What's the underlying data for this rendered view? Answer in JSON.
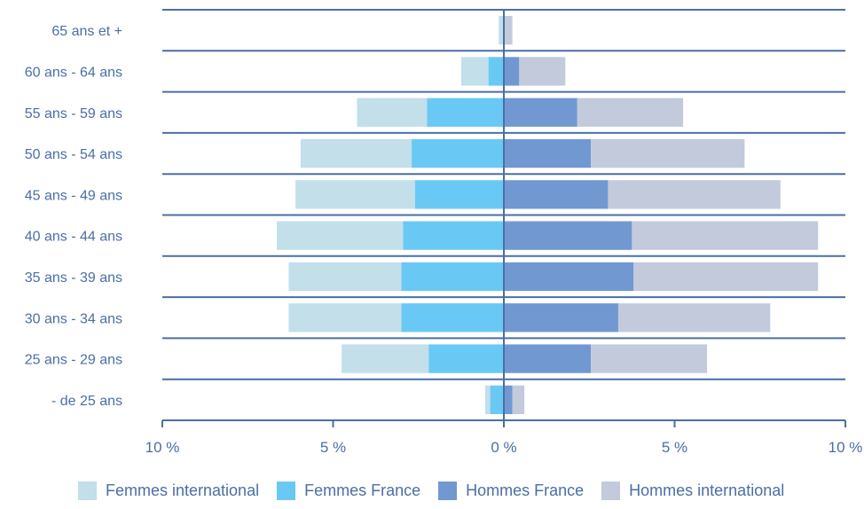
{
  "chart_data": {
    "type": "bar",
    "orientation": "horizontal",
    "layout": "population-pyramid",
    "categories": [
      "65 ans et +",
      "60 ans - 64 ans",
      "55 ans - 59 ans",
      "50 ans - 54 ans",
      "45 ans - 49 ans",
      "40 ans - 44 ans",
      "35 ans - 39 ans",
      "30 ans - 34 ans",
      "25 ans - 29 ans",
      "- de 25 ans"
    ],
    "series": [
      {
        "name": "Femmes international",
        "side": "left",
        "color": "#c2dfea",
        "values": [
          0.15,
          0.8,
          2.05,
          3.25,
          3.5,
          3.7,
          3.3,
          3.3,
          2.55,
          0.15
        ]
      },
      {
        "name": "Femmes France",
        "side": "left",
        "color": "#6ac9f4",
        "values": [
          0.0,
          0.45,
          2.25,
          2.7,
          2.6,
          2.95,
          3.0,
          3.0,
          2.2,
          0.4
        ]
      },
      {
        "name": "Hommes France",
        "side": "right",
        "color": "#7198d1",
        "values": [
          0.0,
          0.45,
          2.15,
          2.55,
          3.05,
          3.75,
          3.8,
          3.35,
          2.55,
          0.25
        ]
      },
      {
        "name": "Hommes international",
        "side": "right",
        "color": "#c2cadc",
        "values": [
          0.25,
          1.35,
          3.1,
          4.5,
          5.05,
          5.45,
          5.4,
          4.45,
          3.4,
          0.35
        ]
      }
    ],
    "xlim": [
      -10,
      10
    ],
    "xticks": [
      -10,
      -5,
      0,
      5,
      10
    ],
    "xtick_labels": [
      "10 %",
      "5 %",
      "0 %",
      "5 %",
      "10 %"
    ],
    "grid": "horizontal-lines",
    "legend": "bottom",
    "colors": {
      "axis": "#4a6fa5",
      "label": "#4a6fa5"
    }
  }
}
